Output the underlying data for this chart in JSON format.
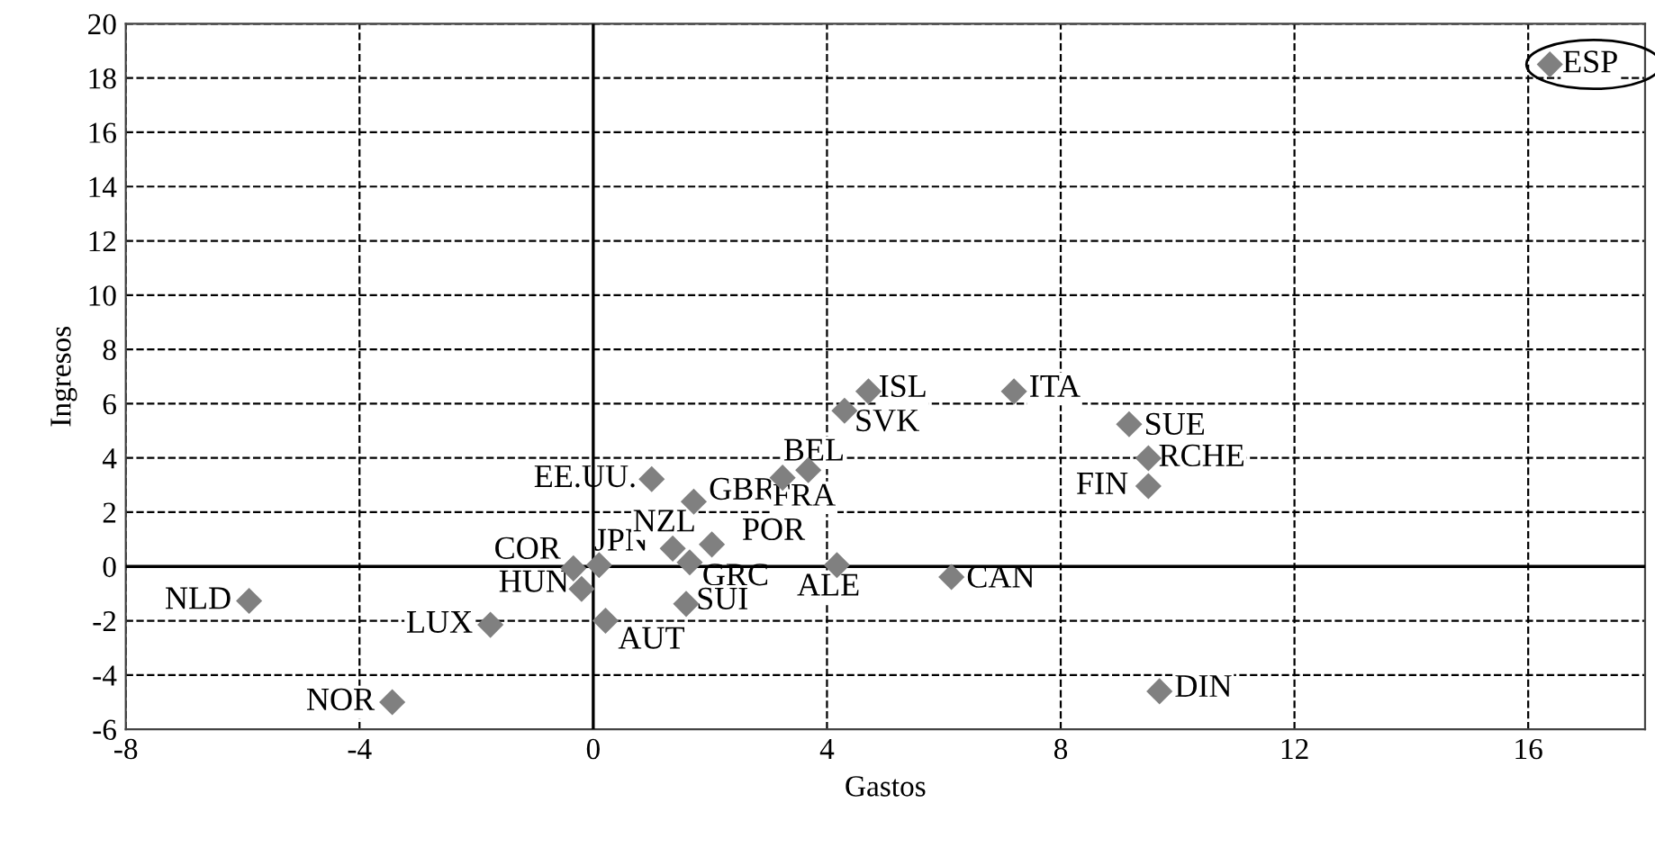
{
  "chart_data": {
    "type": "scatter",
    "xlabel": "Gastos",
    "ylabel": "Ingresos",
    "x": [
      -5.89,
      -1.76,
      -3.44,
      -0.34,
      0.1,
      -0.2,
      0.21,
      1.0,
      1.72,
      1.36,
      2.03,
      1.65,
      1.59,
      3.24,
      3.68,
      4.3,
      4.71,
      4.17,
      6.13,
      7.2,
      9.17,
      9.5,
      9.5,
      9.69,
      16.37
    ],
    "series": [
      {
        "color": "#808080",
        "values": [
          -1.27,
          -2.15,
          -5.0,
          -0.07,
          0.05,
          -0.83,
          -2.0,
          3.22,
          2.39,
          0.66,
          0.81,
          0.15,
          -1.38,
          3.27,
          3.55,
          5.74,
          6.45,
          0.05,
          -0.39,
          6.45,
          5.24,
          3.99,
          2.96,
          -4.6,
          18.5
        ]
      }
    ],
    "value_labels": [
      "NLD",
      "LUX",
      "NOR",
      "COR",
      "JPN",
      "HUN",
      "AUT",
      "EE.UU.",
      "GBR",
      "NZL",
      "POR",
      "GRC",
      "SUI",
      "FRA",
      "BEL",
      "SVK",
      "ISL",
      "ALE",
      "CAN",
      "ITA",
      "SUE",
      "RCHE",
      "FIN",
      "DIN",
      "ESP"
    ],
    "marker": "diamond",
    "grid": true,
    "line_style": "dashed",
    "xlim": [
      -8,
      18
    ],
    "xticks": [
      -8,
      -4,
      0,
      4,
      8,
      12,
      16
    ],
    "ylim": [
      -6,
      20
    ],
    "yticks": [
      -6,
      -4,
      -2,
      0,
      2,
      4,
      6,
      8,
      10,
      12,
      14,
      16,
      18,
      20
    ]
  }
}
